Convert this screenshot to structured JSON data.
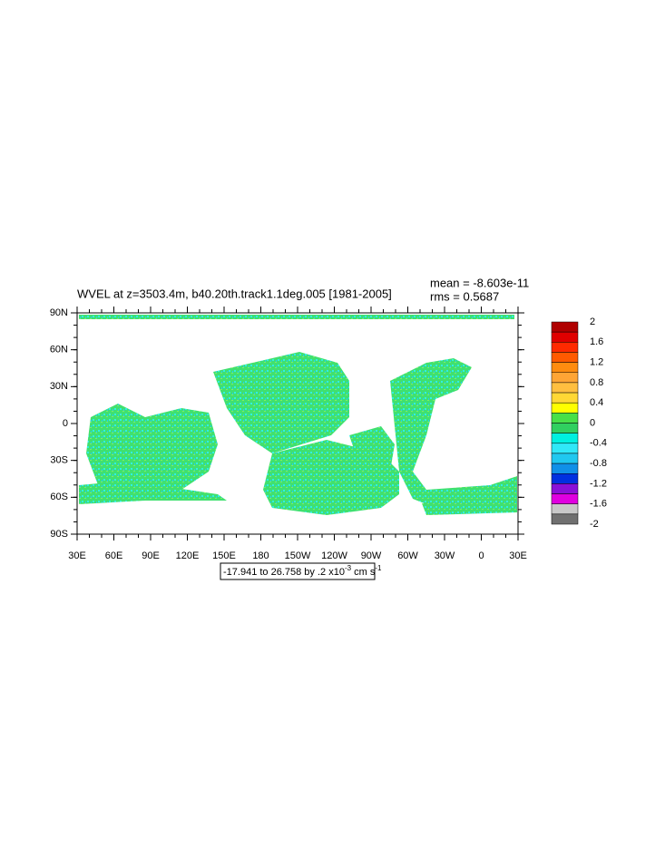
{
  "header": {
    "title": "WVEL at z=3503.4m, b40.20th.track1.1deg.005 [1981-2005]",
    "mean": "mean = -8.603e-11",
    "rms": "rms = 0.5687"
  },
  "map": {
    "lat_labels": [
      "90N",
      "60N",
      "30N",
      "0",
      "30S",
      "60S",
      "90S"
    ],
    "lon_labels": [
      "30E",
      "60E",
      "90E",
      "120E",
      "150E",
      "180",
      "150W",
      "120W",
      "90W",
      "60W",
      "30W",
      "0",
      "30E"
    ]
  },
  "colorbar": {
    "labels": [
      "2",
      "1.6",
      "1.2",
      "0.8",
      "0.4",
      "0",
      "-0.4",
      "-0.8",
      "-1.2",
      "-1.6",
      "-2"
    ],
    "colors": [
      "#b00000",
      "#e00000",
      "#ff2a00",
      "#ff5a00",
      "#ff8c10",
      "#ffa535",
      "#ffbf40",
      "#ffd835",
      "#ffff00",
      "#48e048",
      "#30d060",
      "#00f0e0",
      "#30e8f8",
      "#20c8f0",
      "#1090e8",
      "#0030e0",
      "#8a10d8",
      "#e000e0",
      "#c8c8c8",
      "#707070"
    ]
  },
  "footnote": {
    "text": "-17.941 to 26.758 by .2 x10",
    "exp1": "-3",
    "units": " cm s",
    "exp2": "-1"
  }
}
